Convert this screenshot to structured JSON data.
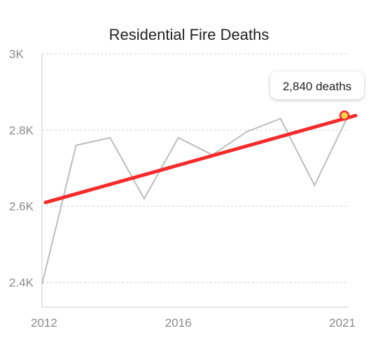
{
  "chart_data": {
    "type": "line",
    "title": "Residential Fire Deaths",
    "xlabel": "",
    "ylabel": "",
    "x": [
      2012,
      2013,
      2014,
      2015,
      2016,
      2017,
      2018,
      2019,
      2020,
      2021
    ],
    "series": [
      {
        "values": [
          2395,
          2760,
          2780,
          2620,
          2780,
          2735,
          2795,
          2830,
          2655,
          2840
        ]
      }
    ],
    "trend": {
      "start": 2610,
      "end": 2840
    },
    "x_ticks": [
      "2012",
      "2016",
      "2021"
    ],
    "y_ticks": [
      {
        "value": 2400,
        "label": "2.4K"
      },
      {
        "value": 2600,
        "label": "2.6K"
      },
      {
        "value": 2800,
        "label": "2.8K"
      },
      {
        "value": 3000,
        "label": "3K"
      }
    ],
    "ylim": [
      2335,
      3000
    ],
    "xlim": [
      2012,
      2021
    ],
    "grid": true,
    "annotation": {
      "x": 2021,
      "y": 2840,
      "text": "2,840 deaths"
    },
    "colors": {
      "series": "#bdbdbd",
      "trend": "#f52a2a",
      "marker_fill": "#ffd54a",
      "grid": "#d0d0d0"
    }
  }
}
